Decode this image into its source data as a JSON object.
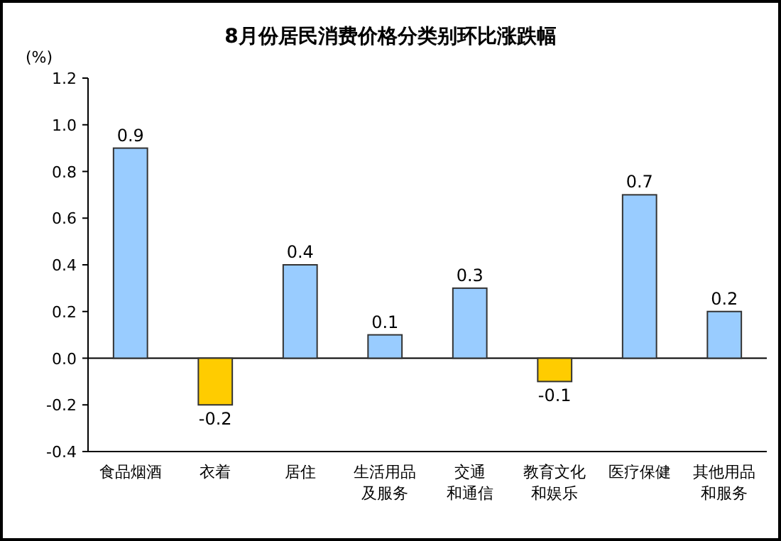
{
  "chart_data": {
    "type": "bar",
    "title": "8月份居民消费价格分类别环比涨跌幅",
    "ylabel": "(%)",
    "categories": [
      "食品烟酒",
      "衣着",
      "居住",
      "生活用品及服务",
      "交通和通信",
      "教育文化和娱乐",
      "医疗保健",
      "其他用品和服务"
    ],
    "values": [
      0.9,
      -0.2,
      0.4,
      0.1,
      0.3,
      -0.1,
      0.7,
      0.2
    ],
    "colors": [
      "#99ccff",
      "#ffcc00",
      "#99ccff",
      "#99ccff",
      "#99ccff",
      "#ffcc00",
      "#99ccff",
      "#99ccff"
    ],
    "data_labels": true,
    "ylim": [
      -0.4,
      1.2
    ],
    "yticks": [
      -0.4,
      -0.2,
      {
        "value": 0,
        "label": "0.0"
      },
      0.2,
      0.4,
      0.6,
      0.8,
      {
        "value": 1,
        "label": "1.0"
      },
      1.2
    ]
  }
}
